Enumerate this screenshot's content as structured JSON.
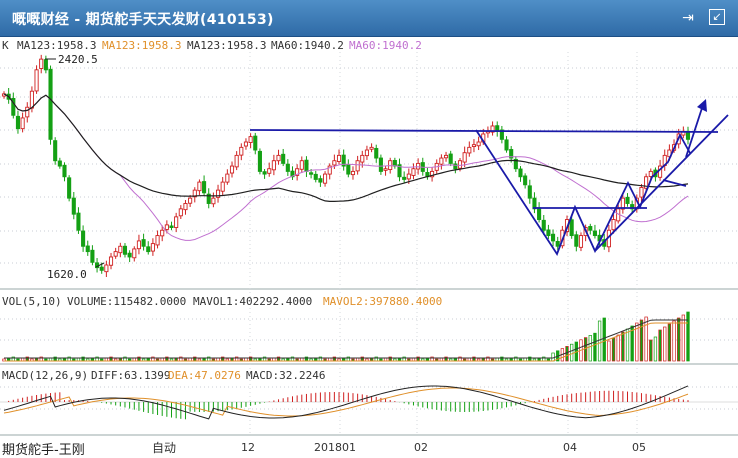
{
  "window": {
    "title": "嘅嘅财经 - 期货舵手天天发财(410153)"
  },
  "price_panel": {
    "k_label": "K",
    "ma123a": "MA123:1958.3",
    "ma123b": "MA123:1958.3",
    "ma123c": "MA123:1958.3",
    "ma60a": "MA60:1940.2",
    "ma60b": "MA60:1940.2",
    "high_label": "2420.5",
    "low_label": "1620.0"
  },
  "volume_panel": {
    "vol": "VOL(5,10)",
    "volume": "VOLUME:115482.0000",
    "mavol1": "MAVOL1:402292.4000",
    "mavol2": "MAVOL2:397880.4000"
  },
  "macd_panel": {
    "name": "MACD(12,26,9)",
    "diff": "DIFF:63.1399",
    "dea": "DEA:47.0276",
    "macd": "MACD:32.2246"
  },
  "x_axis": {
    "labels": [
      "12",
      "201801",
      "02",
      "04",
      "05"
    ]
  },
  "footer": {
    "author": "期货舵手-王刚",
    "mode": "自动"
  },
  "colors": {
    "up": "#d02020",
    "down": "#14a014",
    "ma_dark": "#202020",
    "ma_violet": "#c070d0",
    "trend": "#1a1aa8",
    "orange": "#e0902a"
  },
  "chart_data": {
    "type": "candlestick",
    "price_high_mark": 2420.5,
    "price_low_mark": 1620.0,
    "ma123": 1958.3,
    "ma60": 1940.2,
    "volume": 115482.0,
    "mavol1": 402292.4,
    "mavol2": 397880.4,
    "diff": 63.1399,
    "dea": 47.0276,
    "macd": 32.2246,
    "time_labels": [
      "12",
      "201801",
      "02",
      "04",
      "05"
    ],
    "closes": [
      2290,
      2270,
      2210,
      2160,
      2200,
      2240,
      2300,
      2380,
      2420,
      2380,
      2120,
      2040,
      2020,
      1980,
      1900,
      1840,
      1780,
      1720,
      1700,
      1660,
      1640,
      1630,
      1650,
      1680,
      1700,
      1720,
      1690,
      1680,
      1710,
      1740,
      1720,
      1700,
      1730,
      1760,
      1780,
      1800,
      1790,
      1830,
      1860,
      1880,
      1900,
      1930,
      1960,
      1920,
      1880,
      1900,
      1930,
      1960,
      1990,
      2020,
      2060,
      2090,
      2110,
      2130,
      2080,
      2000,
      1990,
      2010,
      2040,
      2060,
      2030,
      2000,
      1980,
      2010,
      2040,
      2000,
      1990,
      1970,
      1960,
      1990,
      2020,
      2040,
      2060,
      2020,
      1990,
      2000,
      2040,
      2060,
      2080,
      2090,
      2050,
      2000,
      2010,
      2040,
      2020,
      1980,
      1970,
      1990,
      2010,
      2030,
      2000,
      1980,
      2000,
      2030,
      2050,
      2060,
      2030,
      2010,
      2040,
      2070,
      2090,
      2100,
      2110,
      2140,
      2150,
      2170,
      2150,
      2120,
      2080,
      2050,
      2010,
      1980,
      1950,
      1900,
      1860,
      1820,
      1780,
      1760,
      1740,
      1720,
      1780,
      1820,
      1760,
      1720,
      1760,
      1790,
      1780,
      1760,
      1740,
      1720,
      1780,
      1820,
      1860,
      1900,
      1880,
      1860,
      1900,
      1940,
      1980,
      2000,
      1980,
      2020,
      2060,
      2080,
      2100,
      2140,
      2150,
      2120
    ]
  }
}
